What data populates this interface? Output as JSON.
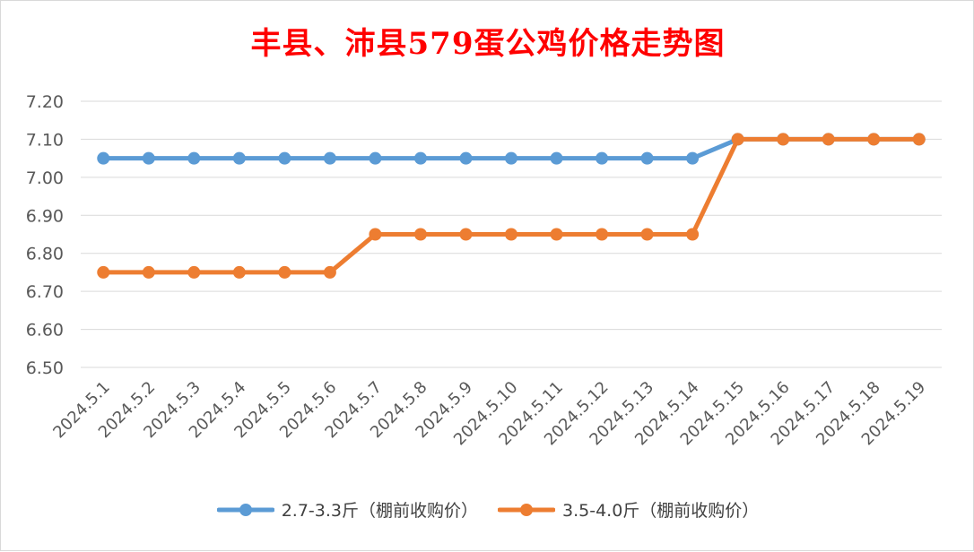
{
  "chart_data": {
    "type": "line",
    "title": "丰县、沛县579蛋公鸡价格走势图",
    "xlabel": "",
    "ylabel": "",
    "categories": [
      "2024.5.1",
      "2024.5.2",
      "2024.5.3",
      "2024.5.4",
      "2024.5.5",
      "2024.5.6",
      "2024.5.7",
      "2024.5.8",
      "2024.5.9",
      "2024.5.10",
      "2024.5.11",
      "2024.5.12",
      "2024.5.13",
      "2024.5.14",
      "2024.5.15",
      "2024.5.16",
      "2024.5.17",
      "2024.5.18",
      "2024.5.19"
    ],
    "yticks": [
      "6.50",
      "6.60",
      "6.70",
      "6.80",
      "6.90",
      "7.00",
      "7.10",
      "7.20"
    ],
    "ylim": [
      6.5,
      7.2
    ],
    "grid": true,
    "legend_position": "bottom",
    "series": [
      {
        "name": "2.7-3.3斤（棚前收购价）",
        "color": "#5b9bd5",
        "values": [
          7.05,
          7.05,
          7.05,
          7.05,
          7.05,
          7.05,
          7.05,
          7.05,
          7.05,
          7.05,
          7.05,
          7.05,
          7.05,
          7.05,
          7.1,
          7.1,
          7.1,
          7.1,
          7.1
        ]
      },
      {
        "name": "3.5-4.0斤（棚前收购价）",
        "color": "#ed7d31",
        "values": [
          6.75,
          6.75,
          6.75,
          6.75,
          6.75,
          6.75,
          6.85,
          6.85,
          6.85,
          6.85,
          6.85,
          6.85,
          6.85,
          6.85,
          7.1,
          7.1,
          7.1,
          7.1,
          7.1
        ]
      }
    ]
  }
}
